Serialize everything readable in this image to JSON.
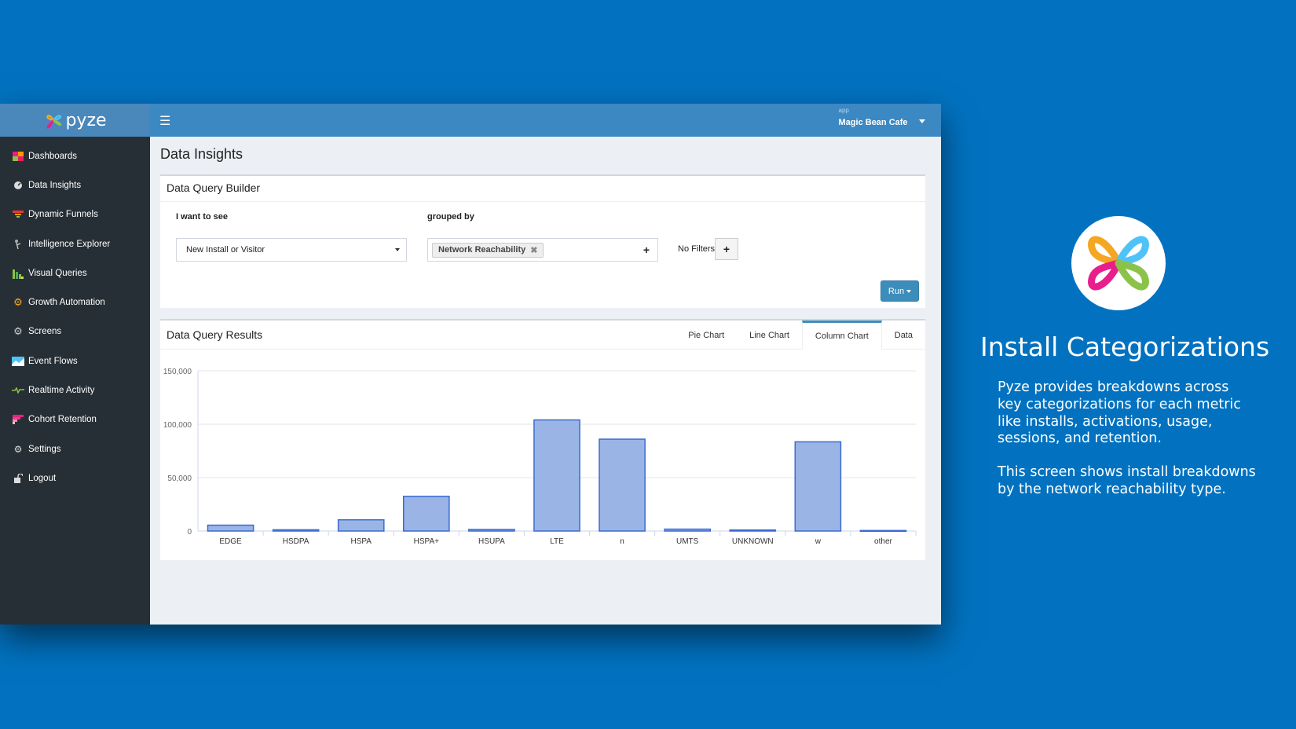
{
  "app": {
    "brand": "pyze",
    "app_label": "app",
    "app_name": "Magic Bean Cafe"
  },
  "sidebar": {
    "items": [
      {
        "label": "Dashboards",
        "icon": "dashboard-grid-icon"
      },
      {
        "label": "Data Insights",
        "icon": "gauge-icon"
      },
      {
        "label": "Dynamic Funnels",
        "icon": "funnel-icon"
      },
      {
        "label": "Intelligence Explorer",
        "icon": "explorer-icon"
      },
      {
        "label": "Visual Queries",
        "icon": "bar-blocks-icon"
      },
      {
        "label": "Growth Automation",
        "icon": "gears-icon"
      },
      {
        "label": "Screens",
        "icon": "screen-cog-icon"
      },
      {
        "label": "Event Flows",
        "icon": "flow-chart-icon"
      },
      {
        "label": "Realtime Activity",
        "icon": "activity-icon"
      },
      {
        "label": "Cohort Retention",
        "icon": "cohort-icon"
      },
      {
        "label": "Settings",
        "icon": "gear-icon"
      },
      {
        "label": "Logout",
        "icon": "unlock-icon"
      }
    ]
  },
  "main": {
    "title": "Data Insights",
    "query_builder": {
      "title": "Data Query Builder",
      "metric_label": "I want to see",
      "metric_value": "New Install or Visitor",
      "group_label": "grouped by",
      "group_tag": "Network Reachability",
      "filters_text": "No Filters",
      "run_label": "Run"
    },
    "results": {
      "title": "Data Query Results",
      "tabs": [
        "Pie Chart",
        "Line Chart",
        "Column Chart",
        "Data"
      ],
      "active_tab": "Column Chart"
    }
  },
  "chart_data": {
    "type": "bar",
    "categories": [
      "EDGE",
      "HSDPA",
      "HSPA",
      "HSPA+",
      "HSUPA",
      "LTE",
      "n",
      "UMTS",
      "UNKNOWN",
      "w",
      "other"
    ],
    "values": [
      5500,
      1200,
      10500,
      32500,
      1500,
      104000,
      86000,
      1800,
      1000,
      83500,
      500
    ],
    "ylim": [
      0,
      150000
    ],
    "yticks": [
      0,
      50000,
      100000,
      150000
    ],
    "ytick_labels": [
      "0",
      "50,000",
      "100,000",
      "150,000"
    ],
    "grid": true,
    "bar_color": "#9ab4e6",
    "bar_border": "#3b6bd1"
  },
  "promo": {
    "title": "Install Categorizations",
    "paragraph1": "Pyze provides breakdowns across key categorizations for each metric like installs, activations, usage, sessions, and retention.",
    "paragraph2": "This screen shows install breakdowns by the network reachability type."
  },
  "colors": {
    "background": "#0272c0",
    "sidebar": "#262f35",
    "topbar": "#3c88c3",
    "accent": "#3c8dbc"
  }
}
